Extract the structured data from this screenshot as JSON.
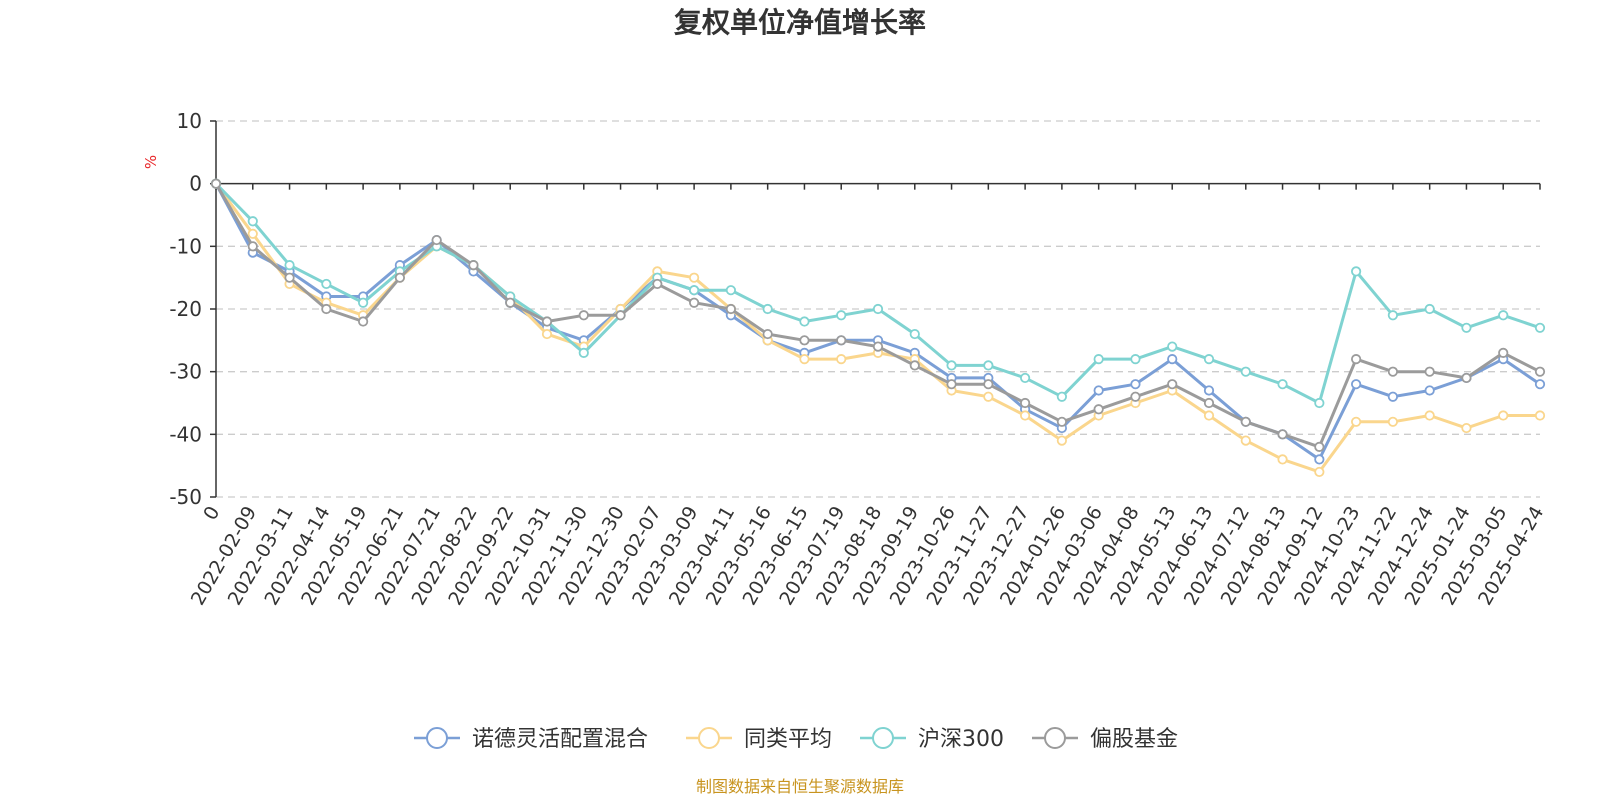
{
  "chart_data": {
    "type": "line",
    "title": "复权单位净值增长率",
    "ylabel": "%",
    "ylim": [
      -50,
      10
    ],
    "yticks": [
      10,
      0,
      -10,
      -20,
      -30,
      -40,
      -50
    ],
    "grid": "horizontal-dashed",
    "legend_position": "bottom",
    "source_note": "制图数据来自恒生聚源数据库",
    "x_tick_labels": [
      "0",
      "2022-02-09",
      "2022-03-11",
      "2022-04-14",
      "2022-05-19",
      "2022-06-21",
      "2022-07-21",
      "2022-08-22",
      "2022-09-22",
      "2022-10-31",
      "2022-11-30",
      "2022-12-30",
      "2023-02-07",
      "2023-03-09",
      "2023-04-11",
      "2023-05-16",
      "2023-06-15",
      "2023-07-19",
      "2023-08-18",
      "2023-09-19",
      "2023-10-26",
      "2023-11-27",
      "2023-12-27",
      "2024-01-26",
      "2024-03-06",
      "2024-04-08",
      "2024-05-13",
      "2024-06-13",
      "2024-07-12",
      "2024-08-13",
      "2024-09-12",
      "2024-10-23",
      "2024-11-22",
      "2024-12-24",
      "2025-01-24",
      "2025-03-05",
      "2025-04-24"
    ],
    "x_index": [
      0,
      1,
      2,
      3,
      4,
      5,
      6,
      7,
      8,
      9,
      10,
      11,
      12,
      13,
      14,
      15,
      16,
      17,
      18,
      19,
      20,
      21,
      22,
      23,
      24,
      25,
      26,
      27,
      28,
      29,
      30,
      31,
      32,
      33,
      34,
      35,
      36
    ],
    "series": [
      {
        "name": "诺德灵活配置混合",
        "color": "#7b9fd6",
        "values": [
          0,
          -11,
          -14,
          -18,
          -18,
          -13,
          -9,
          -14,
          -19,
          -23,
          -25,
          -20,
          -15,
          -17,
          -21,
          -25,
          -27,
          -25,
          -25,
          -27,
          -31,
          -31,
          -36,
          -39,
          -33,
          -32,
          -28,
          -33,
          -38,
          -40,
          -44,
          -32,
          -34,
          -33,
          -31,
          -28,
          -32
        ]
      },
      {
        "name": "同类平均",
        "color": "#fad68d",
        "values": [
          0,
          -8,
          -16,
          -19,
          -21,
          -15,
          -10,
          -13,
          -18,
          -24,
          -26,
          -20,
          -14,
          -15,
          -20,
          -25,
          -28,
          -28,
          -27,
          -28,
          -33,
          -34,
          -37,
          -41,
          -37,
          -35,
          -33,
          -37,
          -41,
          -44,
          -46,
          -38,
          -38,
          -37,
          -39,
          -37,
          -37
        ]
      },
      {
        "name": "沪深300",
        "color": "#7fd3d1",
        "values": [
          0,
          -6,
          -13,
          -16,
          -19,
          -14,
          -10,
          -13,
          -18,
          -22,
          -27,
          -21,
          -15,
          -17,
          -17,
          -20,
          -22,
          -21,
          -20,
          -24,
          -29,
          -29,
          -31,
          -34,
          -28,
          -28,
          -26,
          -28,
          -30,
          -32,
          -35,
          -14,
          -21,
          -20,
          -23,
          -21,
          -23
        ]
      },
      {
        "name": "偏股基金",
        "color": "#9b9b9b",
        "values": [
          0,
          -10,
          -15,
          -20,
          -22,
          -15,
          -9,
          -13,
          -19,
          -22,
          -21,
          -21,
          -16,
          -19,
          -20,
          -24,
          -25,
          -25,
          -26,
          -29,
          -32,
          -32,
          -35,
          -38,
          -36,
          -34,
          -32,
          -35,
          -38,
          -40,
          -42,
          -28,
          -30,
          -30,
          -31,
          -27,
          -30
        ]
      }
    ]
  }
}
